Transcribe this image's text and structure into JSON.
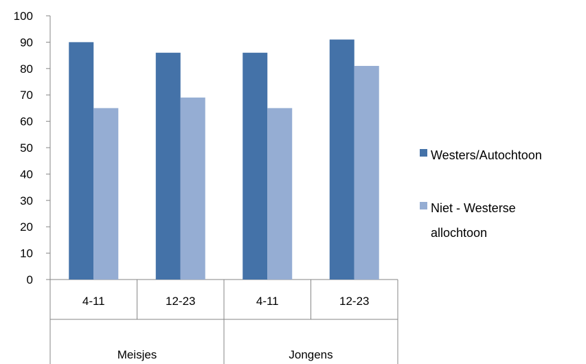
{
  "chart_data": {
    "type": "bar",
    "title": "",
    "xlabel": "",
    "ylabel": "",
    "ylim": [
      0,
      100
    ],
    "yticks": [
      0,
      10,
      20,
      30,
      40,
      50,
      60,
      70,
      80,
      90,
      100
    ],
    "grid": false,
    "legend_position": "right",
    "categories": [
      "4-11",
      "12-23",
      "4-11",
      "12-23"
    ],
    "groups": [
      {
        "label": "Meisjes",
        "categories": [
          "4-11",
          "12-23"
        ]
      },
      {
        "label": "Jongens",
        "categories": [
          "4-11",
          "12-23"
        ]
      }
    ],
    "series": [
      {
        "name": "Westers/Autochtoon",
        "color": "#4472A8",
        "values": [
          90,
          86,
          86,
          91
        ]
      },
      {
        "name": "Niet - Westerse allochtoon",
        "name_lines": [
          "Niet - Westerse",
          "allochtoon"
        ],
        "color": "#95ADD3",
        "values": [
          65,
          69,
          65,
          81
        ]
      }
    ]
  }
}
